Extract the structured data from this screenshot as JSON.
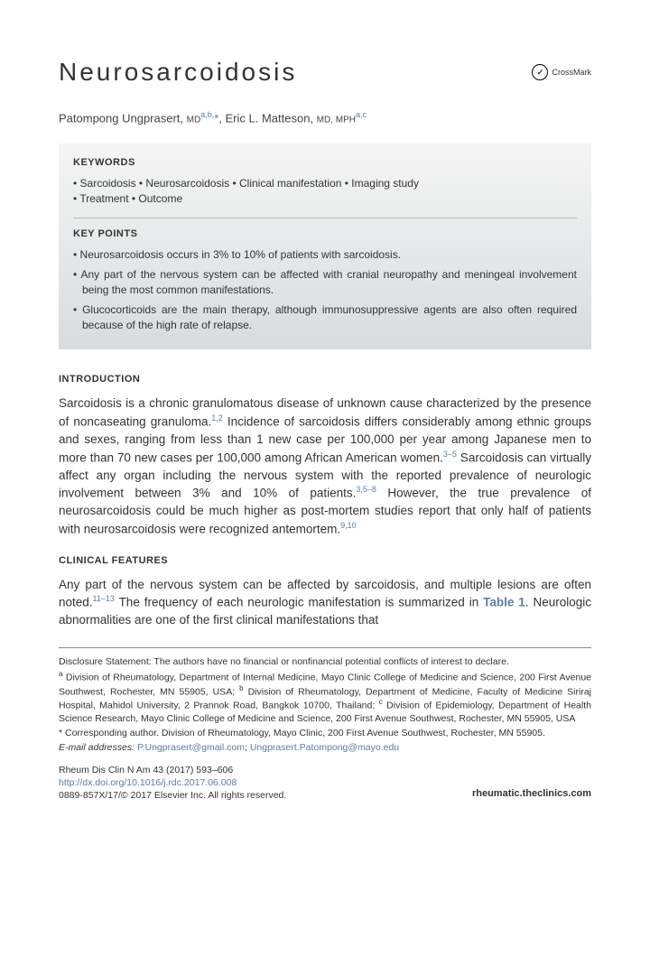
{
  "title": "Neurosarcoidosis",
  "crossmark": "CrossMark",
  "authors": {
    "a1_name": "Patompong Ungprasert, ",
    "a1_deg": "MD",
    "a1_aff": "a,b,",
    "a1_star": "*",
    "sep": ", ",
    "a2_name": "Eric L. Matteson, ",
    "a2_deg": "MD, MPH",
    "a2_aff": "a,c"
  },
  "keywords": {
    "heading": "KEYWORDS",
    "line1": "• Sarcoidosis • Neurosarcoidosis • Clinical manifestation • Imaging study",
    "line2": "• Treatment • Outcome"
  },
  "keypoints": {
    "heading": "KEY POINTS",
    "items": [
      "Neurosarcoidosis occurs in 3% to 10% of patients with sarcoidosis.",
      "Any part of the nervous system can be affected with cranial neuropathy and meningeal involvement being the most common manifestations.",
      "Glucocorticoids are the main therapy, although immunosuppressive agents are also often required because of the high rate of relapse."
    ]
  },
  "intro": {
    "heading": "INTRODUCTION",
    "text_pre": "Sarcoidosis is a chronic granulomatous disease of unknown cause characterized by the presence of noncaseating granuloma.",
    "sup1": "1,2",
    "text_mid1": " Incidence of sarcoidosis differs considerably among ethnic groups and sexes, ranging from less than 1 new case per 100,000 per year among Japanese men to more than 70 new cases per 100,000 among African American women.",
    "sup2": "3–5",
    "text_mid2": " Sarcoidosis can virtually affect any organ including the nervous system with the reported prevalence of neurologic involvement between 3% and 10% of patients.",
    "sup3": "3,5–8",
    "text_mid3": " However, the true prevalence of neurosarcoidosis could be much higher as post-mortem studies report that only half of patients with neurosarcoidosis were recognized antemortem.",
    "sup4": "9,10"
  },
  "clinical": {
    "heading": "CLINICAL FEATURES",
    "text_pre": "Any part of the nervous system can be affected by sarcoidosis, and multiple lesions are often noted.",
    "sup1": "11–13",
    "text_mid1": " The frequency of each neurologic manifestation is summarized in ",
    "table_ref": "Table 1",
    "text_mid2": ". Neurologic abnormalities are one of the first clinical manifestations that"
  },
  "footnotes": {
    "disclosure": "Disclosure Statement: The authors have no financial or nonfinancial potential conflicts of interest to declare.",
    "aff_a_sup": "a",
    "aff_a": " Division of Rheumatology, Department of Internal Medicine, Mayo Clinic College of Medicine and Science, 200 First Avenue Southwest, Rochester, MN 55905, USA; ",
    "aff_b_sup": "b",
    "aff_b": " Division of Rheumatology, Department of Medicine, Faculty of Medicine Siriraj Hospital, Mahidol University, 2 Prannok Road, Bangkok 10700, Thailand; ",
    "aff_c_sup": "c",
    "aff_c": " Division of Epidemiology, Department of Health Science Research, Mayo Clinic College of Medicine and Science, 200 First Avenue Southwest, Rochester, MN 55905, USA",
    "corr": "* Corresponding author. Division of Rheumatology, Mayo Clinic, 200 First Avenue Southwest, Rochester, MN 55905.",
    "email_label": "E-mail addresses: ",
    "email1": "P.Ungprasert@gmail.com",
    "email_sep": "; ",
    "email2": "Ungprasert.Patompong@mayo.edu"
  },
  "meta": {
    "citation": "Rheum Dis Clin N Am 43 (2017) 593–606",
    "doi": "http://dx.doi.org/10.1016/j.rdc.2017.06.008",
    "copyright": "0889-857X/17/© 2017 Elsevier Inc. All rights reserved.",
    "site": "rheumatic.theclinics.com"
  },
  "colors": {
    "link": "#5a7ca8",
    "text": "#333333",
    "box_top": "#f5f5f5",
    "box_bottom": "#d8dcde"
  }
}
